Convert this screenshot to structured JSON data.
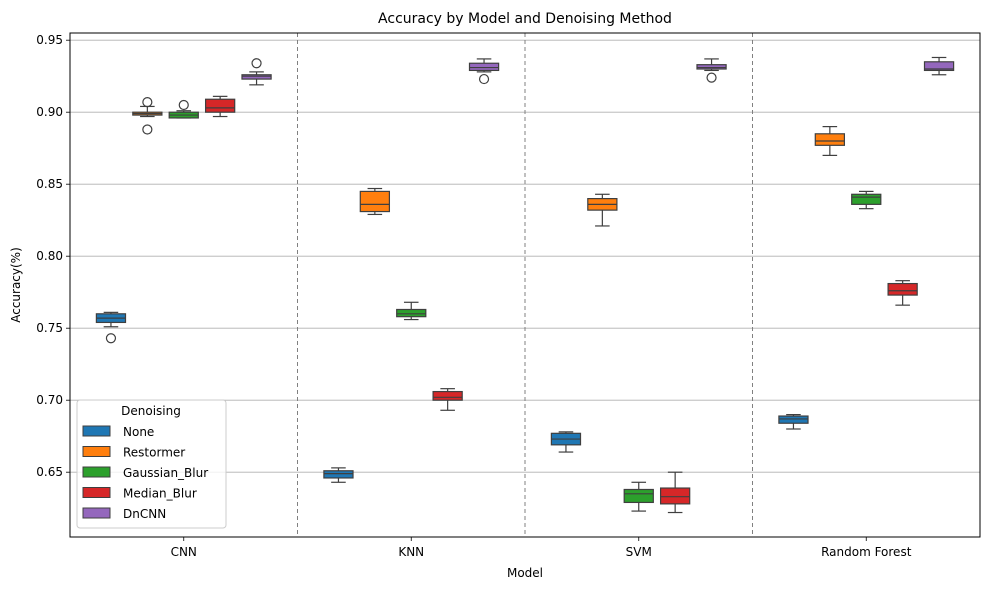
{
  "chart_data": {
    "type": "box",
    "title": "Accuracy by Model and Denoising Method",
    "xlabel": "Model",
    "ylabel": "Accuracy(%)",
    "ylim": [
      0.605,
      0.955
    ],
    "yticks": [
      0.65,
      0.7,
      0.75,
      0.8,
      0.85,
      0.9,
      0.95
    ],
    "ytick_labels": [
      "0.65",
      "0.70",
      "0.75",
      "0.80",
      "0.85",
      "0.90",
      "0.95"
    ],
    "grid": "horizontal",
    "categories": [
      "CNN",
      "KNN",
      "SVM",
      "Random Forest"
    ],
    "legend": {
      "title": "Denoising",
      "placement": "lower-left"
    },
    "series": [
      {
        "name": "None",
        "color": "#1f77b4",
        "boxes": [
          {
            "whislo": 0.751,
            "q1": 0.754,
            "med": 0.757,
            "q3": 0.76,
            "whishi": 0.761,
            "fliers": [
              0.743
            ]
          },
          {
            "whislo": 0.643,
            "q1": 0.646,
            "med": 0.649,
            "q3": 0.651,
            "whishi": 0.653,
            "fliers": []
          },
          {
            "whislo": 0.664,
            "q1": 0.669,
            "med": 0.673,
            "q3": 0.677,
            "whishi": 0.678,
            "fliers": []
          },
          {
            "whislo": 0.68,
            "q1": 0.684,
            "med": 0.687,
            "q3": 0.689,
            "whishi": 0.69,
            "fliers": []
          }
        ]
      },
      {
        "name": "Restormer",
        "color": "#ff7f0e",
        "boxes": [
          {
            "whislo": 0.897,
            "q1": 0.898,
            "med": 0.899,
            "q3": 0.9,
            "whishi": 0.904,
            "fliers": [
              0.907,
              0.888
            ]
          },
          {
            "whislo": 0.829,
            "q1": 0.831,
            "med": 0.836,
            "q3": 0.845,
            "whishi": 0.847,
            "fliers": []
          },
          {
            "whislo": 0.821,
            "q1": 0.832,
            "med": 0.836,
            "q3": 0.84,
            "whishi": 0.843,
            "fliers": []
          },
          {
            "whislo": 0.87,
            "q1": 0.877,
            "med": 0.88,
            "q3": 0.885,
            "whishi": 0.89,
            "fliers": []
          }
        ]
      },
      {
        "name": "Gaussian_Blur",
        "color": "#2ca02c",
        "boxes": [
          {
            "whislo": 0.896,
            "q1": 0.896,
            "med": 0.898,
            "q3": 0.9,
            "whishi": 0.901,
            "fliers": [
              0.905
            ]
          },
          {
            "whislo": 0.756,
            "q1": 0.758,
            "med": 0.76,
            "q3": 0.763,
            "whishi": 0.768,
            "fliers": []
          },
          {
            "whislo": 0.623,
            "q1": 0.629,
            "med": 0.635,
            "q3": 0.638,
            "whishi": 0.643,
            "fliers": []
          },
          {
            "whislo": 0.833,
            "q1": 0.836,
            "med": 0.841,
            "q3": 0.843,
            "whishi": 0.845,
            "fliers": []
          }
        ]
      },
      {
        "name": "Median_Blur",
        "color": "#d62728",
        "boxes": [
          {
            "whislo": 0.897,
            "q1": 0.9,
            "med": 0.903,
            "q3": 0.909,
            "whishi": 0.911,
            "fliers": []
          },
          {
            "whislo": 0.693,
            "q1": 0.7,
            "med": 0.702,
            "q3": 0.706,
            "whishi": 0.708,
            "fliers": []
          },
          {
            "whislo": 0.622,
            "q1": 0.628,
            "med": 0.633,
            "q3": 0.639,
            "whishi": 0.65,
            "fliers": []
          },
          {
            "whislo": 0.766,
            "q1": 0.773,
            "med": 0.776,
            "q3": 0.781,
            "whishi": 0.783,
            "fliers": []
          }
        ]
      },
      {
        "name": "DnCNN",
        "color": "#9467bd",
        "boxes": [
          {
            "whislo": 0.919,
            "q1": 0.923,
            "med": 0.925,
            "q3": 0.926,
            "whishi": 0.928,
            "fliers": [
              0.934
            ]
          },
          {
            "whislo": 0.928,
            "q1": 0.929,
            "med": 0.931,
            "q3": 0.934,
            "whishi": 0.937,
            "fliers": [
              0.923
            ]
          },
          {
            "whislo": 0.929,
            "q1": 0.93,
            "med": 0.931,
            "q3": 0.933,
            "whishi": 0.937,
            "fliers": [
              0.924
            ]
          },
          {
            "whislo": 0.926,
            "q1": 0.929,
            "med": 0.93,
            "q3": 0.935,
            "whishi": 0.938,
            "fliers": []
          }
        ]
      }
    ]
  }
}
